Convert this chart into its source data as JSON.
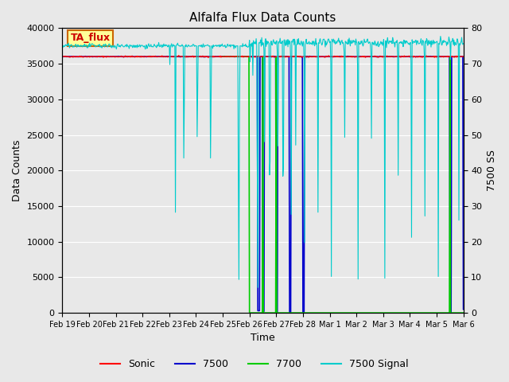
{
  "title": "Alfalfa Flux Data Counts",
  "xlabel": "Time",
  "ylabel_left": "Data Counts",
  "ylabel_right": "7500 SS",
  "ylim_left": [
    0,
    40000
  ],
  "ylim_right": [
    0,
    80
  ],
  "bg_color": "#e8e8e8",
  "annotation_text": "TA_flux",
  "annotation_bg": "#ffff99",
  "annotation_border": "#cc6600",
  "annotation_text_color": "#cc0000",
  "legend_labels": [
    "Sonic",
    "7500",
    "7700",
    "7500 Signal"
  ],
  "legend_colors": [
    "#ff0000",
    "#0000cc",
    "#00cc00",
    "#00cccc"
  ],
  "xtick_labels": [
    "Feb 19",
    "Feb 20",
    "Feb 21",
    "Feb 22",
    "Feb 23",
    "Feb 24",
    "Feb 25",
    "Feb 26",
    "Feb 27",
    "Feb 28",
    "Mar 1",
    "Mar 2",
    "Mar 3",
    "Mar 4",
    "Mar 5",
    "Mar 6"
  ],
  "sonic_value": 36000,
  "val_7500": 36000,
  "val_7700_value": 36000,
  "signal_base": 37500,
  "signal_scale": 500
}
